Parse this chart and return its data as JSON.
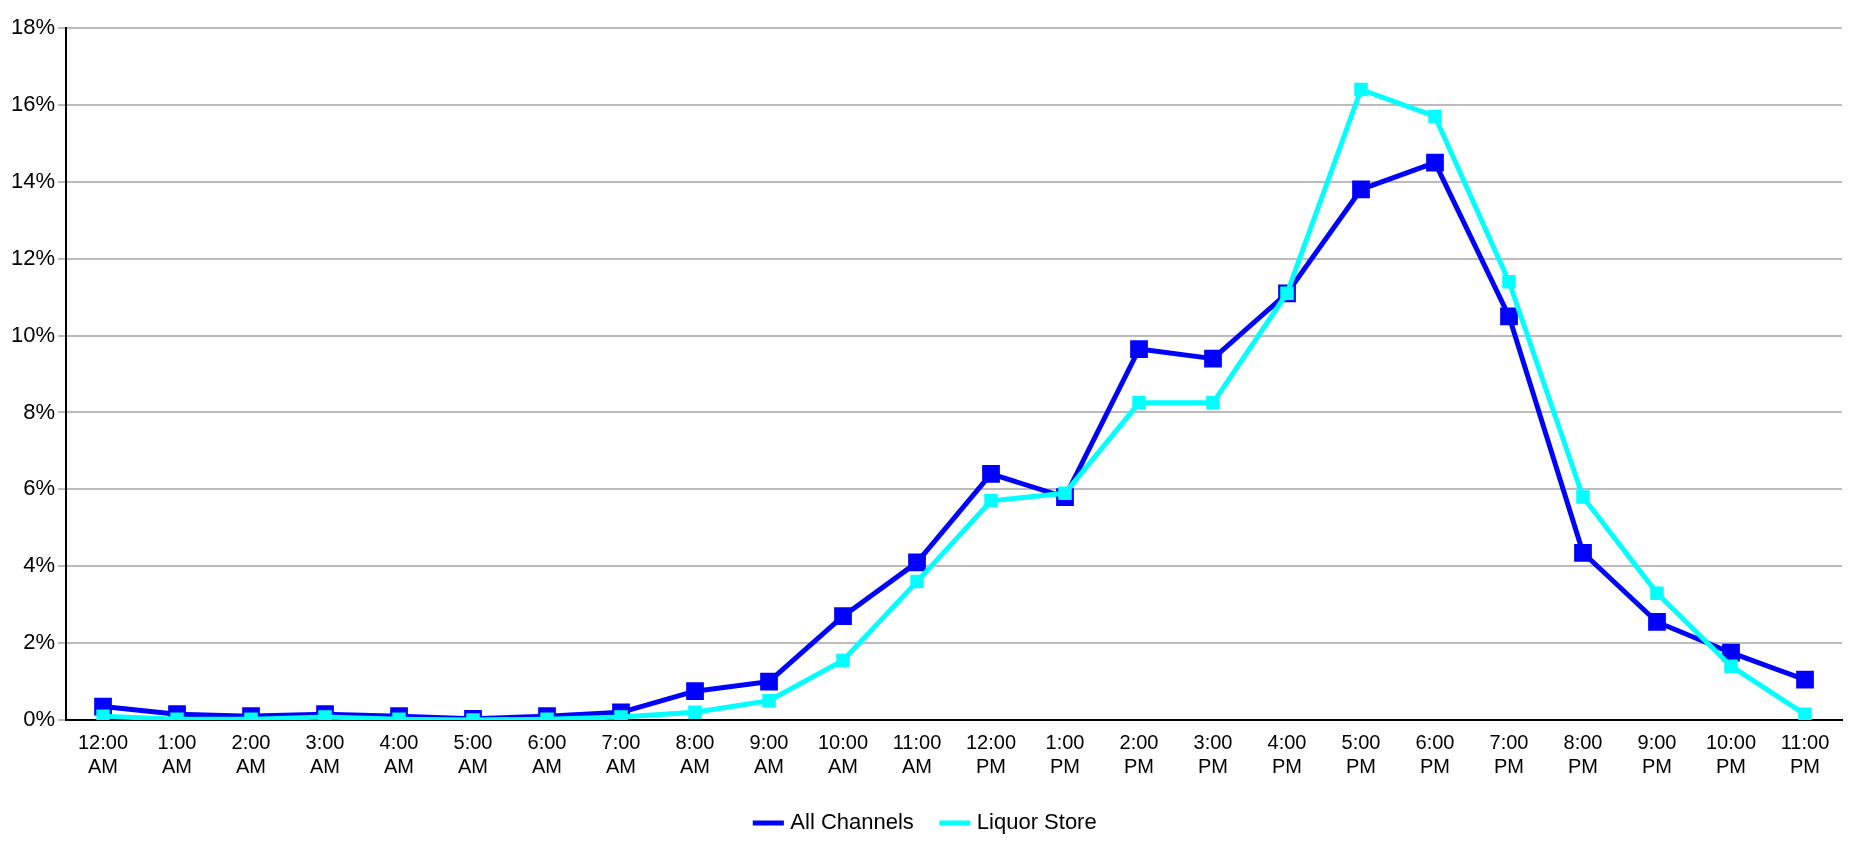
{
  "chart_data": {
    "type": "line",
    "categories": [
      "12:00 AM",
      "1:00 AM",
      "2:00 AM",
      "3:00 AM",
      "4:00 AM",
      "5:00 AM",
      "6:00 AM",
      "7:00 AM",
      "8:00 AM",
      "9:00 AM",
      "10:00 AM",
      "11:00 AM",
      "12:00 PM",
      "1:00 PM",
      "2:00 PM",
      "3:00 PM",
      "4:00 PM",
      "5:00 PM",
      "6:00 PM",
      "7:00 PM",
      "8:00 PM",
      "9:00 PM",
      "10:00 PM",
      "11:00 PM"
    ],
    "series": [
      {
        "name": "All Channels",
        "color": "#0000ff",
        "values": [
          0.35,
          0.15,
          0.1,
          0.15,
          0.1,
          0.03,
          0.1,
          0.2,
          0.75,
          1.0,
          2.7,
          4.1,
          6.4,
          5.8,
          9.65,
          9.4,
          11.1,
          13.8,
          14.5,
          10.5,
          4.35,
          2.55,
          1.75,
          1.05
        ]
      },
      {
        "name": "Liquor Store",
        "color": "#00ffff",
        "values": [
          0.1,
          0.02,
          0.02,
          0.08,
          0.02,
          0,
          0.02,
          0.08,
          0.2,
          0.5,
          1.55,
          3.6,
          5.7,
          5.9,
          8.25,
          8.25,
          11.1,
          16.4,
          15.7,
          11.4,
          5.8,
          3.3,
          1.4,
          0.15
        ]
      }
    ],
    "ylim": [
      0,
      18
    ],
    "yticks": [
      {
        "value": 0,
        "label": "0%"
      },
      {
        "value": 2,
        "label": "2%"
      },
      {
        "value": 4,
        "label": "4%"
      },
      {
        "value": 6,
        "label": "6%"
      },
      {
        "value": 8,
        "label": "8%"
      },
      {
        "value": 10,
        "label": "10%"
      },
      {
        "value": 12,
        "label": "12%"
      },
      {
        "value": 14,
        "label": "14%"
      },
      {
        "value": 16,
        "label": "16%"
      },
      {
        "value": 18,
        "label": "18%"
      }
    ],
    "grid": "y",
    "legend": "bottom",
    "marker": "square",
    "line_style": "solid"
  }
}
